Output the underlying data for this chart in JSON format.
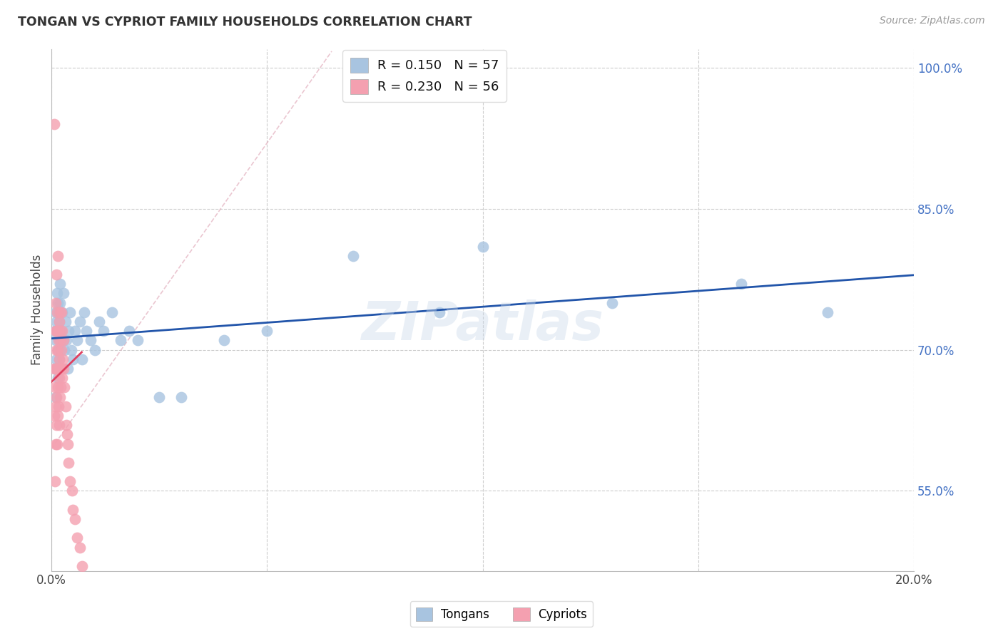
{
  "title": "TONGAN VS CYPRIOT FAMILY HOUSEHOLDS CORRELATION CHART",
  "source": "Source: ZipAtlas.com",
  "ylabel": "Family Households",
  "xlim": [
    0.0,
    0.2
  ],
  "ylim": [
    0.465,
    1.02
  ],
  "yticks": [
    0.55,
    0.7,
    0.85,
    1.0
  ],
  "ytick_labels": [
    "55.0%",
    "70.0%",
    "85.0%",
    "100.0%"
  ],
  "xticks": [
    0.0,
    0.05,
    0.1,
    0.15,
    0.2
  ],
  "xtick_labels": [
    "0.0%",
    "",
    "",
    "",
    "20.0%"
  ],
  "tongan_R": 0.15,
  "tongan_N": 57,
  "cypriot_R": 0.23,
  "cypriot_N": 56,
  "tongan_color": "#a8c4e0",
  "cypriot_color": "#f4a0b0",
  "tongan_line_color": "#2255aa",
  "cypriot_line_color": "#e04060",
  "watermark": "ZIPatlas",
  "tongan_x": [
    0.0008,
    0.0008,
    0.0009,
    0.001,
    0.001,
    0.0012,
    0.0012,
    0.0013,
    0.0014,
    0.0014,
    0.0015,
    0.0015,
    0.0016,
    0.0016,
    0.0017,
    0.0018,
    0.0018,
    0.0019,
    0.002,
    0.002,
    0.0022,
    0.0023,
    0.0025,
    0.0027,
    0.0028,
    0.003,
    0.0032,
    0.0035,
    0.0038,
    0.004,
    0.0043,
    0.0046,
    0.005,
    0.0055,
    0.006,
    0.0065,
    0.007,
    0.0075,
    0.008,
    0.009,
    0.01,
    0.011,
    0.012,
    0.014,
    0.016,
    0.018,
    0.02,
    0.025,
    0.03,
    0.04,
    0.05,
    0.07,
    0.09,
    0.1,
    0.13,
    0.16,
    0.18
  ],
  "tongan_y": [
    0.68,
    0.72,
    0.65,
    0.71,
    0.74,
    0.69,
    0.73,
    0.76,
    0.7,
    0.75,
    0.67,
    0.72,
    0.68,
    0.74,
    0.71,
    0.69,
    0.73,
    0.77,
    0.7,
    0.75,
    0.72,
    0.68,
    0.74,
    0.71,
    0.76,
    0.7,
    0.73,
    0.71,
    0.68,
    0.72,
    0.74,
    0.7,
    0.69,
    0.72,
    0.71,
    0.73,
    0.69,
    0.74,
    0.72,
    0.71,
    0.7,
    0.73,
    0.72,
    0.74,
    0.71,
    0.72,
    0.71,
    0.65,
    0.65,
    0.71,
    0.72,
    0.8,
    0.74,
    0.81,
    0.75,
    0.77,
    0.74
  ],
  "cypriot_x": [
    0.0006,
    0.0007,
    0.0007,
    0.0008,
    0.0008,
    0.0009,
    0.0009,
    0.001,
    0.001,
    0.001,
    0.0011,
    0.0011,
    0.0012,
    0.0012,
    0.0012,
    0.0013,
    0.0013,
    0.0013,
    0.0014,
    0.0014,
    0.0015,
    0.0015,
    0.0015,
    0.0016,
    0.0016,
    0.0017,
    0.0017,
    0.0018,
    0.0018,
    0.0019,
    0.0019,
    0.002,
    0.002,
    0.0021,
    0.0021,
    0.0022,
    0.0022,
    0.0023,
    0.0024,
    0.0025,
    0.0026,
    0.0027,
    0.0028,
    0.003,
    0.0032,
    0.0034,
    0.0036,
    0.0038,
    0.004,
    0.0043,
    0.0047,
    0.005,
    0.0055,
    0.006,
    0.0065,
    0.007
  ],
  "cypriot_y": [
    0.63,
    0.68,
    0.94,
    0.56,
    0.66,
    0.6,
    0.72,
    0.64,
    0.68,
    0.75,
    0.62,
    0.7,
    0.65,
    0.72,
    0.78,
    0.6,
    0.68,
    0.74,
    0.63,
    0.7,
    0.66,
    0.72,
    0.8,
    0.64,
    0.71,
    0.67,
    0.73,
    0.62,
    0.69,
    0.65,
    0.72,
    0.68,
    0.74,
    0.66,
    0.71,
    0.68,
    0.74,
    0.7,
    0.67,
    0.72,
    0.69,
    0.71,
    0.68,
    0.66,
    0.64,
    0.62,
    0.61,
    0.6,
    0.58,
    0.56,
    0.55,
    0.53,
    0.52,
    0.5,
    0.49,
    0.47
  ]
}
